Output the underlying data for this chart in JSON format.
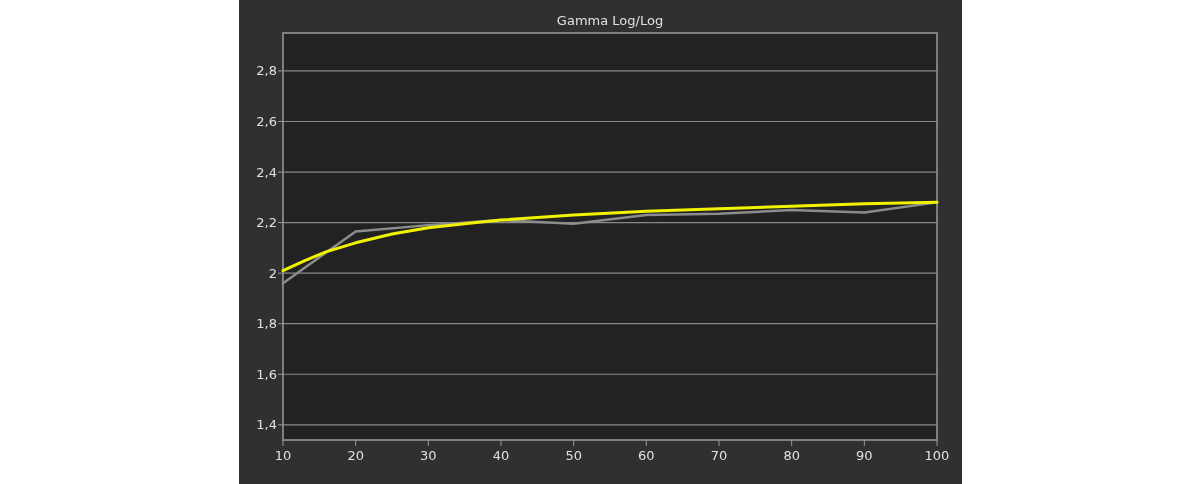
{
  "chart_data": {
    "type": "line",
    "title": "Gamma Log/Log",
    "xlim": [
      10,
      100
    ],
    "xticks": [
      10,
      20,
      30,
      40,
      50,
      60,
      70,
      80,
      90,
      100
    ],
    "ylim": [
      1.34,
      2.95
    ],
    "yticks": [
      {
        "value": 1.4,
        "label": "1,4"
      },
      {
        "value": 1.6,
        "label": "1,6"
      },
      {
        "value": 1.8,
        "label": "1,8"
      },
      {
        "value": 2,
        "label": "2"
      },
      {
        "value": 2.2,
        "label": "2,2"
      },
      {
        "value": 2.4,
        "label": "2,4"
      },
      {
        "value": 2.6,
        "label": "2,6"
      },
      {
        "value": 2.8,
        "label": "2,8"
      }
    ],
    "grid": "y",
    "marker": "none",
    "line_style": "solid",
    "series": [
      {
        "color": "#8c8c8c",
        "x": [
          10,
          20,
          30,
          40,
          50,
          60,
          70,
          80,
          90,
          100
        ],
        "values": [
          1.96,
          2.165,
          2.19,
          2.21,
          2.195,
          2.23,
          2.235,
          2.25,
          2.24,
          2.28
        ]
      },
      {
        "color": "#f2f200",
        "x": [
          10,
          13,
          16,
          20,
          25,
          30,
          35,
          40,
          50,
          60,
          70,
          80,
          90,
          100
        ],
        "values": [
          2.01,
          2.05,
          2.085,
          2.12,
          2.155,
          2.18,
          2.195,
          2.21,
          2.23,
          2.245,
          2.255,
          2.265,
          2.275,
          2.28
        ]
      }
    ]
  }
}
